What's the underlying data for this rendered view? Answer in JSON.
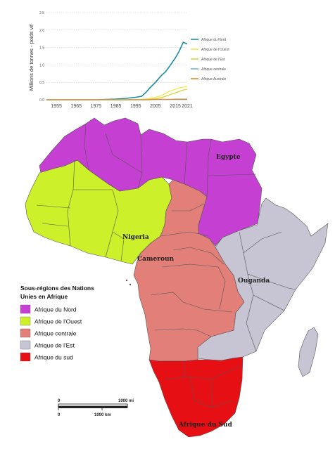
{
  "chart_data": {
    "type": "line",
    "title": "",
    "xlabel": "",
    "ylabel": "Millions de tonnes - poids vif",
    "x": [
      1950,
      1955,
      1960,
      1965,
      1970,
      1975,
      1980,
      1985,
      1990,
      1995,
      1998,
      2000,
      2002,
      2005,
      2008,
      2010,
      2012,
      2015,
      2017,
      2019,
      2021
    ],
    "xticks": [
      "1955",
      "1965",
      "1975",
      "1985",
      "1995",
      "2005",
      "2015",
      "2021"
    ],
    "xtick_values": [
      1955,
      1965,
      1975,
      1985,
      1995,
      2005,
      2015,
      2021
    ],
    "yticks": [
      "0.0",
      "0.5",
      "1.0",
      "1.5",
      "2.0",
      "2.5"
    ],
    "ytick_values": [
      0,
      0.5,
      1.0,
      1.5,
      2.0,
      2.5
    ],
    "xlim": [
      1950,
      2021
    ],
    "ylim": [
      0,
      2.5
    ],
    "grid": "horizontal dotted",
    "legend_position": "right",
    "series": [
      {
        "name": "Afrique du Nord",
        "color": "#1a8ca3",
        "values": [
          0,
          0,
          0,
          0,
          0,
          0,
          0.01,
          0.02,
          0.04,
          0.07,
          0.1,
          0.2,
          0.33,
          0.5,
          0.7,
          0.8,
          0.95,
          1.2,
          1.4,
          1.65,
          1.6
        ]
      },
      {
        "name": "Afrique de l'Ouest",
        "color": "#f2e94a",
        "values": [
          0,
          0,
          0,
          0,
          0,
          0,
          0,
          0,
          0,
          0.01,
          0.01,
          0.02,
          0.04,
          0.07,
          0.12,
          0.18,
          0.24,
          0.3,
          0.34,
          0.36,
          0.38
        ]
      },
      {
        "name": "Afrique de l'Est",
        "color": "#d8d23c",
        "values": [
          0,
          0,
          0,
          0,
          0,
          0,
          0,
          0,
          0,
          0,
          0.01,
          0.01,
          0.02,
          0.03,
          0.06,
          0.1,
          0.14,
          0.2,
          0.24,
          0.28,
          0.3
        ]
      },
      {
        "name": "Afrique centrale",
        "color": "#6bb8d6",
        "values": [
          0,
          0,
          0,
          0,
          0,
          0,
          0,
          0,
          0,
          0,
          0,
          0,
          0,
          0.01,
          0.01,
          0.01,
          0.01,
          0.02,
          0.02,
          0.02,
          0.02
        ]
      },
      {
        "name": "Afrique  Australe",
        "color": "#e28a2e",
        "values": [
          0,
          0,
          0,
          0,
          0,
          0,
          0,
          0,
          0,
          0,
          0,
          0,
          0,
          0.01,
          0.01,
          0.01,
          0.01,
          0.01,
          0.01,
          0.01,
          0.01
        ]
      }
    ]
  },
  "map": {
    "colors": {
      "nord": "#c540d2",
      "ouest": "#ccf029",
      "centrale": "#e27f79",
      "est": "#c7c4d4",
      "sud": "#e60f13"
    },
    "labels": {
      "egypte": "Egypte",
      "nigeria": "Nigeria",
      "cameroun": "Cameroun",
      "ouganda": "Ouganda",
      "afrique_du_sud": "Afrique du Sud"
    }
  },
  "legend": {
    "title_line1": "Sous-régions des Nations",
    "title_line2": "Unies en Afrique",
    "items": [
      {
        "label": "Afrique du Nord",
        "color": "#c540d2"
      },
      {
        "label": "Afrique de l'Ouest",
        "color": "#ccf029"
      },
      {
        "label": "Afrique centrale",
        "color": "#e27f79"
      },
      {
        "label": "Afrique de l'Est",
        "color": "#c7c4d4"
      },
      {
        "label": "Afrique du sud",
        "color": "#e60f13"
      }
    ]
  },
  "scale": {
    "zero_top": "0",
    "zero_bottom": "0",
    "mi_label": "1000 mi",
    "km_label": "1000 km"
  }
}
